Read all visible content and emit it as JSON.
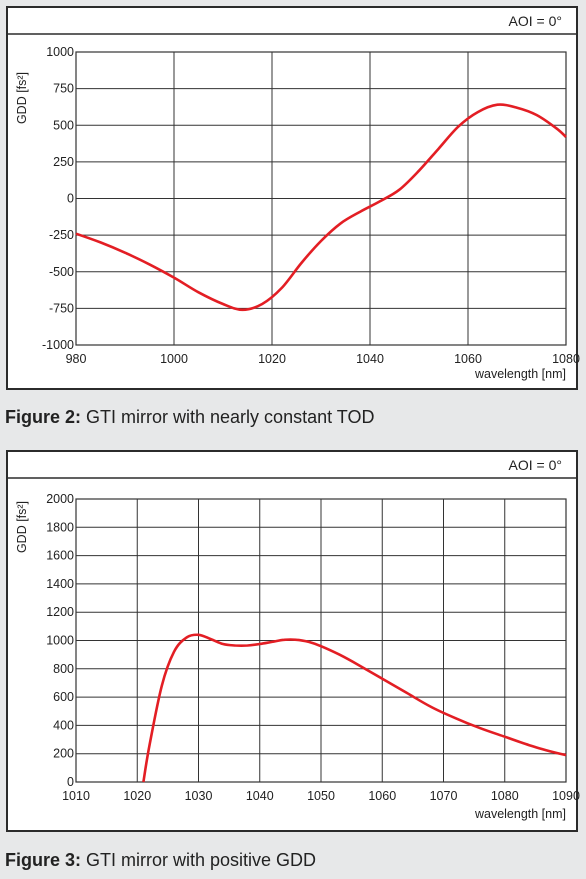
{
  "figures": [
    {
      "aoi": "AOI = 0°",
      "caption_label": "Figure 2:",
      "caption_text": "GTI mirror with nearly constant TOD"
    },
    {
      "aoi": "AOI = 0°",
      "caption_label": "Figure 3:",
      "caption_text": "GTI mirror with positive GDD"
    }
  ],
  "colors": {
    "curve": "#e31e24",
    "grid": "#333333",
    "background": "#e7e8e9"
  },
  "chart_data": [
    {
      "type": "line",
      "xlabel": "wavelength [nm]",
      "ylabel": "GDD [fs²]",
      "xlim": [
        980,
        1080
      ],
      "ylim": [
        -1000,
        1000
      ],
      "xticks": [
        980,
        1000,
        1020,
        1040,
        1060,
        1080
      ],
      "yticks": [
        -1000,
        -750,
        -500,
        -250,
        0,
        250,
        500,
        750,
        1000
      ],
      "grid": true,
      "series": [
        {
          "x": [
            980,
            985,
            990,
            995,
            1000,
            1005,
            1010,
            1014,
            1018,
            1022,
            1026,
            1030,
            1034,
            1038,
            1042,
            1046,
            1050,
            1054,
            1058,
            1062,
            1066,
            1070,
            1074,
            1078,
            1080
          ],
          "y": [
            -240,
            -300,
            -370,
            -450,
            -540,
            -640,
            -720,
            -760,
            -720,
            -610,
            -440,
            -290,
            -170,
            -90,
            -20,
            60,
            190,
            340,
            490,
            590,
            640,
            620,
            570,
            480,
            420
          ]
        }
      ]
    },
    {
      "type": "line",
      "xlabel": "wavelength [nm]",
      "ylabel": "GDD [fs²]",
      "xlim": [
        1010,
        1090
      ],
      "ylim": [
        0,
        2000
      ],
      "xticks": [
        1010,
        1020,
        1030,
        1040,
        1050,
        1060,
        1070,
        1080,
        1090
      ],
      "yticks": [
        0,
        200,
        400,
        600,
        800,
        1000,
        1200,
        1400,
        1600,
        1800,
        2000
      ],
      "grid": true,
      "series": [
        {
          "x": [
            1021,
            1022,
            1024,
            1026,
            1028,
            1030,
            1032,
            1034,
            1036,
            1038,
            1040,
            1042,
            1044,
            1046,
            1048,
            1050,
            1053,
            1056,
            1060,
            1064,
            1068,
            1072,
            1076,
            1080,
            1084,
            1088,
            1090
          ],
          "y": [
            0,
            260,
            680,
            920,
            1020,
            1040,
            1010,
            975,
            965,
            965,
            975,
            990,
            1005,
            1005,
            990,
            960,
            900,
            830,
            730,
            630,
            530,
            450,
            380,
            320,
            260,
            210,
            190
          ]
        }
      ]
    }
  ]
}
